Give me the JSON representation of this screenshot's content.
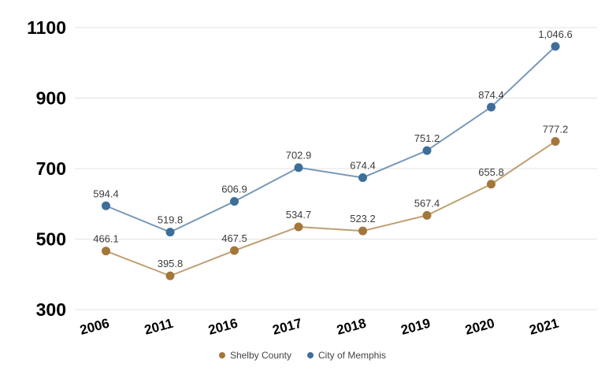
{
  "chart_data": {
    "type": "line",
    "title": "",
    "categories": [
      "2006",
      "2011",
      "2016",
      "2017",
      "2018",
      "2019",
      "2020",
      "2021"
    ],
    "series": [
      {
        "name": "Shelby County",
        "color": "#A3763A",
        "values": [
          466.1,
          395.8,
          467.5,
          534.7,
          523.2,
          567.4,
          655.8,
          777.2
        ],
        "labels": [
          "466.1",
          "395.8",
          "467.5",
          "534.7",
          "523.2",
          "567.4",
          "655.8",
          "777.2"
        ]
      },
      {
        "name": "City of Memphis",
        "color": "#3E6E9A",
        "values": [
          594.4,
          519.8,
          606.9,
          702.9,
          674.4,
          751.2,
          874.4,
          1046.6
        ],
        "labels": [
          "594.4",
          "519.8",
          "606.9",
          "702.9",
          "674.4",
          "751.2",
          "874.4",
          "1,046.6"
        ]
      }
    ],
    "y_axis": {
      "min": 300,
      "max": 1100,
      "ticks": [
        1100,
        900,
        700,
        500,
        300
      ],
      "tick_labels": [
        "1100",
        "900",
        "700",
        "500",
        "300"
      ]
    },
    "grid": true,
    "legend_position": "bottom",
    "colors": {
      "grid": "#E3E3E3",
      "data_label": "#3B3B3B",
      "axis_label": "#000000",
      "legend_text": "#444444",
      "background": "#FFFFFF"
    }
  }
}
